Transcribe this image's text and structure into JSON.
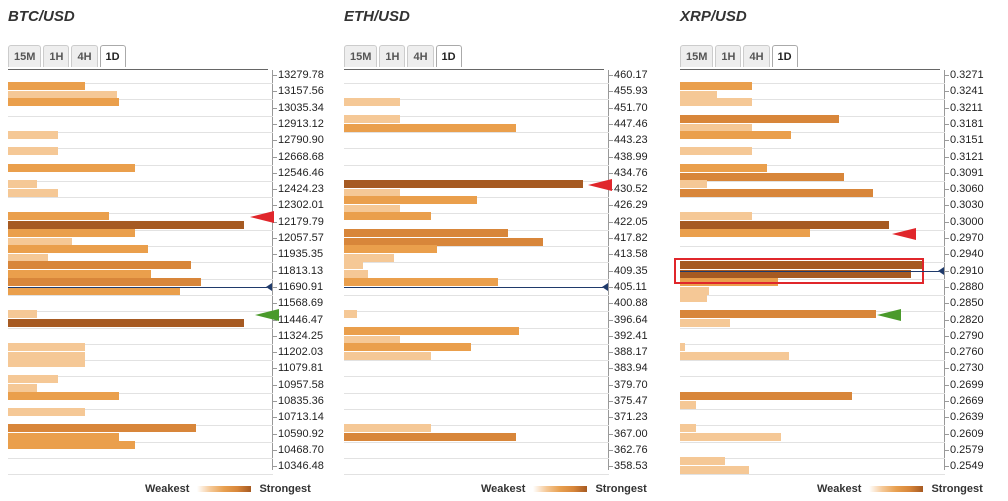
{
  "legend": {
    "weakest": "Weakest",
    "strongest": "Strongest"
  },
  "tabs": [
    "15M",
    "1H",
    "4H",
    "1D"
  ],
  "active_tab": "1D",
  "colors": {
    "strong": "#a65a22",
    "medium": "#d8863a",
    "normal": "#ea9f4c",
    "light": "#f5c896",
    "bull_arrow": "#4a9a2b",
    "bear_arrow": "#e0262b",
    "price_line": "#1f3a6b"
  },
  "chart_data": [
    {
      "type": "bar",
      "title": "BTC/USD",
      "orientation": "horizontal",
      "categories": [
        "13279.78",
        "13157.56",
        "13035.34",
        "12913.12",
        "12790.90",
        "12668.68",
        "12546.46",
        "12424.23",
        "12302.01",
        "12179.79",
        "12057.57",
        "11935.35",
        "11813.13",
        "11690.91",
        "11568.69",
        "11446.47",
        "11324.25",
        "11202.03",
        "11079.81",
        "10957.58",
        "10835.36",
        "10713.14",
        "10590.92",
        "10468.70",
        "10346.48"
      ],
      "current_price": "11690.91",
      "resistance": "12302.01",
      "support": "11568.69",
      "bars": [
        {
          "level": "13279.78",
          "values": [
            29,
            41
          ],
          "shades": [
            "normal",
            "light"
          ]
        },
        {
          "level": "13157.56",
          "values": [
            42
          ],
          "shades": [
            "normal"
          ]
        },
        {
          "level": "12913.12",
          "values": [
            19
          ],
          "shades": [
            "light"
          ]
        },
        {
          "level": "12790.90",
          "values": [
            19
          ],
          "shades": [
            "light"
          ]
        },
        {
          "level": "12668.68",
          "values": [
            48
          ],
          "shades": [
            "normal"
          ]
        },
        {
          "level": "12546.46",
          "values": [
            11,
            19
          ],
          "shades": [
            "light",
            "light"
          ]
        },
        {
          "level": "12302.01",
          "values": [
            38,
            89
          ],
          "shades": [
            "normal",
            "strong"
          ]
        },
        {
          "level": "12179.79",
          "values": [
            48,
            24
          ],
          "shades": [
            "normal",
            "light"
          ]
        },
        {
          "level": "12057.57",
          "values": [
            53,
            15
          ],
          "shades": [
            "normal",
            "light"
          ]
        },
        {
          "level": "11935.35",
          "values": [
            69,
            54
          ],
          "shades": [
            "medium",
            "normal"
          ]
        },
        {
          "level": "11813.13",
          "values": [
            73,
            65
          ],
          "shades": [
            "medium",
            "normal"
          ]
        },
        {
          "level": "11568.69",
          "values": [
            11,
            89
          ],
          "shades": [
            "light",
            "strong"
          ]
        },
        {
          "level": "11324.25",
          "values": [
            29,
            29
          ],
          "shades": [
            "light",
            "light"
          ]
        },
        {
          "level": "11202.03",
          "values": [
            29
          ],
          "shades": [
            "light"
          ]
        },
        {
          "level": "11079.81",
          "values": [
            19,
            11
          ],
          "shades": [
            "light",
            "light"
          ]
        },
        {
          "level": "10957.58",
          "values": [
            42
          ],
          "shades": [
            "normal"
          ]
        },
        {
          "level": "10835.36",
          "values": [
            29
          ],
          "shades": [
            "light"
          ]
        },
        {
          "level": "10713.14",
          "values": [
            71,
            42
          ],
          "shades": [
            "medium",
            "normal"
          ]
        },
        {
          "level": "10590.92",
          "values": [
            48
          ],
          "shades": [
            "normal"
          ]
        }
      ]
    },
    {
      "type": "bar",
      "title": "ETH/USD",
      "orientation": "horizontal",
      "categories": [
        "460.17",
        "455.93",
        "451.70",
        "447.46",
        "443.23",
        "438.99",
        "434.76",
        "430.52",
        "426.29",
        "422.05",
        "417.82",
        "413.58",
        "409.35",
        "405.11",
        "400.88",
        "396.64",
        "392.41",
        "388.17",
        "383.94",
        "379.70",
        "375.47",
        "371.23",
        "367.00",
        "362.76",
        "358.53"
      ],
      "current_price": "405.11",
      "resistance": "434.76",
      "support": null,
      "bars": [
        {
          "level": "455.93",
          "values": [
            21
          ],
          "shades": [
            "light"
          ]
        },
        {
          "level": "451.70",
          "values": [
            21,
            65
          ],
          "shades": [
            "light",
            "normal"
          ]
        },
        {
          "level": "434.76",
          "values": [
            90,
            21
          ],
          "shades": [
            "strong",
            "light"
          ]
        },
        {
          "level": "430.52",
          "values": [
            50,
            21
          ],
          "shades": [
            "normal",
            "light"
          ]
        },
        {
          "level": "426.29",
          "values": [
            33
          ],
          "shades": [
            "normal"
          ]
        },
        {
          "level": "422.05",
          "values": [
            62,
            75
          ],
          "shades": [
            "medium",
            "medium"
          ]
        },
        {
          "level": "417.82",
          "values": [
            35,
            19
          ],
          "shades": [
            "normal",
            "light"
          ]
        },
        {
          "level": "413.58",
          "values": [
            7,
            9
          ],
          "shades": [
            "light",
            "light"
          ]
        },
        {
          "level": "409.35",
          "values": [
            58
          ],
          "shades": [
            "normal"
          ]
        },
        {
          "level": "400.88",
          "values": [
            5
          ],
          "shades": [
            "light"
          ]
        },
        {
          "level": "396.64",
          "values": [
            66,
            21
          ],
          "shades": [
            "normal",
            "light"
          ]
        },
        {
          "level": "392.41",
          "values": [
            48,
            33
          ],
          "shades": [
            "normal",
            "light"
          ]
        },
        {
          "level": "371.23",
          "values": [
            33,
            65
          ],
          "shades": [
            "light",
            "medium"
          ]
        }
      ]
    },
    {
      "type": "bar",
      "title": "XRP/USD",
      "orientation": "horizontal",
      "categories": [
        "0.3271",
        "0.3241",
        "0.3211",
        "0.3181",
        "0.3151",
        "0.3121",
        "0.3091",
        "0.3060",
        "0.3030",
        "0.3000",
        "0.2970",
        "0.2940",
        "0.2910",
        "0.2880",
        "0.2850",
        "0.2820",
        "0.2790",
        "0.2760",
        "0.2730",
        "0.2699",
        "0.2669",
        "0.2639",
        "0.2609",
        "0.2579",
        "0.2549"
      ],
      "current_price": "0.2910",
      "resistance": "0.3000",
      "support": "0.2850",
      "highlight": "0.2940",
      "bars": [
        {
          "level": "0.3271",
          "values": [
            27,
            14
          ],
          "shades": [
            "normal",
            "light"
          ]
        },
        {
          "level": "0.3241",
          "values": [
            27
          ],
          "shades": [
            "light"
          ]
        },
        {
          "level": "0.3211",
          "values": [
            60,
            27
          ],
          "shades": [
            "medium",
            "light"
          ]
        },
        {
          "level": "0.3181",
          "values": [
            42
          ],
          "shades": [
            "normal"
          ]
        },
        {
          "level": "0.3151",
          "values": [
            27
          ],
          "shades": [
            "light"
          ]
        },
        {
          "level": "0.3121",
          "values": [
            33,
            62
          ],
          "shades": [
            "normal",
            "medium"
          ]
        },
        {
          "level": "0.3091",
          "values": [
            10,
            73
          ],
          "shades": [
            "light",
            "medium"
          ]
        },
        {
          "level": "0.3030",
          "values": [
            27,
            79
          ],
          "shades": [
            "light",
            "strong"
          ]
        },
        {
          "level": "0.3000",
          "values": [
            49
          ],
          "shades": [
            "normal"
          ]
        },
        {
          "level": "0.2940",
          "values": [
            92,
            87
          ],
          "shades": [
            "strong",
            "strong"
          ]
        },
        {
          "level": "0.2910",
          "values": [
            37,
            11
          ],
          "shades": [
            "normal",
            "light"
          ]
        },
        {
          "level": "0.2880",
          "values": [
            10
          ],
          "shades": [
            "light"
          ]
        },
        {
          "level": "0.2850",
          "values": [
            74,
            19
          ],
          "shades": [
            "medium",
            "light"
          ]
        },
        {
          "level": "0.2790",
          "values": [
            2,
            41
          ],
          "shades": [
            "light",
            "light"
          ]
        },
        {
          "level": "0.2699",
          "values": [
            65,
            6
          ],
          "shades": [
            "medium",
            "light"
          ]
        },
        {
          "level": "0.2639",
          "values": [
            6,
            38
          ],
          "shades": [
            "light",
            "light"
          ]
        },
        {
          "level": "0.2579",
          "values": [
            17,
            26
          ],
          "shades": [
            "light",
            "light"
          ]
        }
      ]
    }
  ]
}
